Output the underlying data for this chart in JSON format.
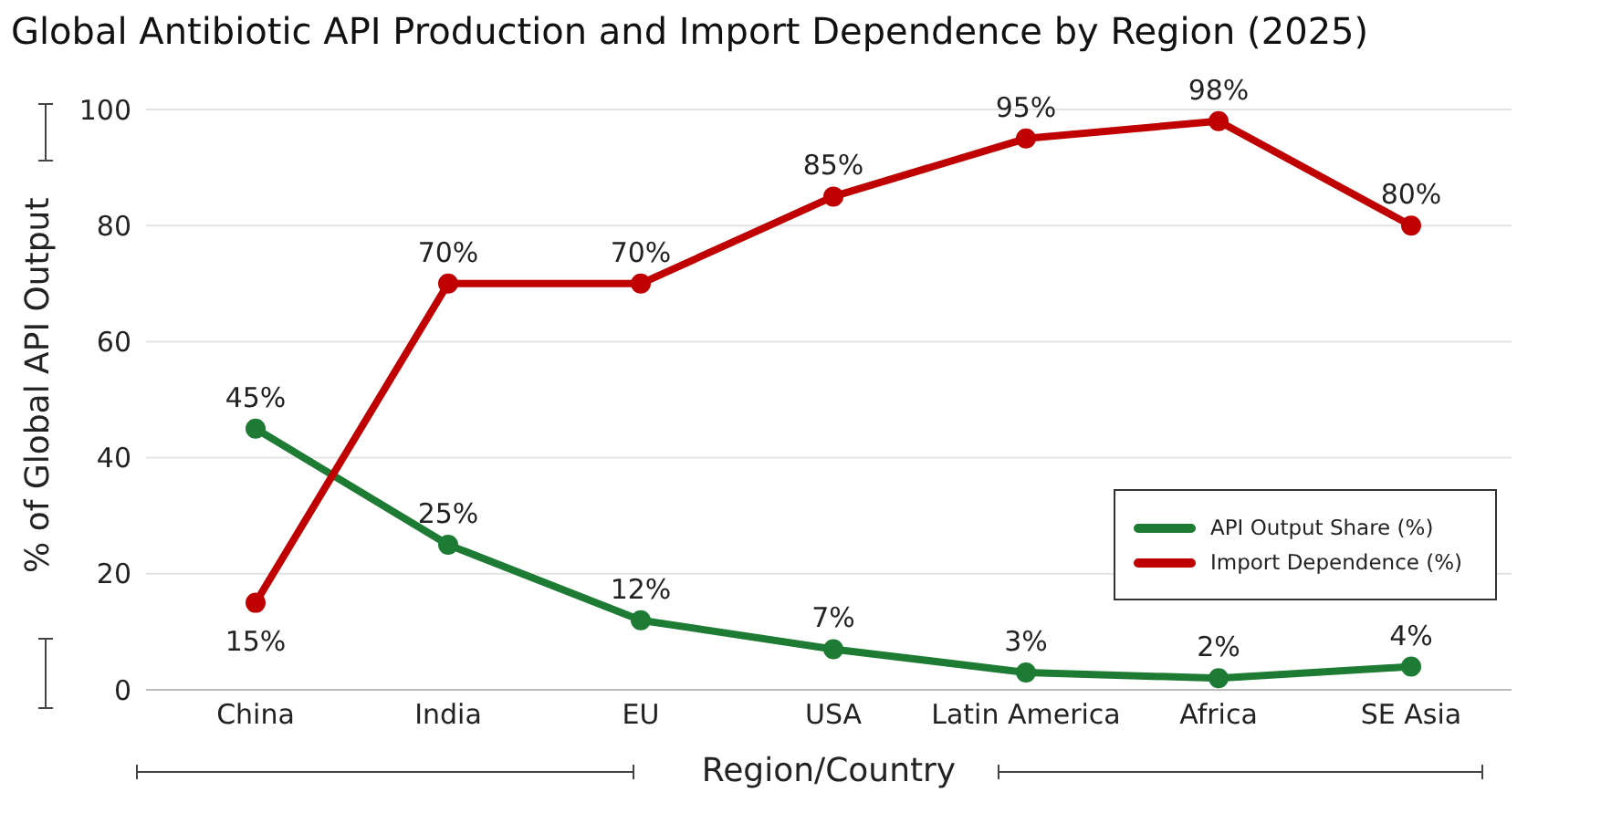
{
  "chart_data": {
    "type": "line",
    "title": "Global Antibiotic API Production and Import Dependence by Region (2025)",
    "xlabel": "Region/Country",
    "ylabel": "% of Global API Output",
    "categories": [
      "China",
      "India",
      "EU",
      "USA",
      "Latin America",
      "Africa",
      "SE Asia"
    ],
    "series": [
      {
        "name": "API Output Share (%)",
        "color": "#1e7b34",
        "values": [
          45,
          25,
          12,
          7,
          3,
          2,
          4
        ],
        "value_labels": [
          "45%",
          "25%",
          "12%",
          "7%",
          "3%",
          "2%",
          "4%"
        ]
      },
      {
        "name": "Import Dependence (%)",
        "color": "#c00000",
        "values": [
          15,
          70,
          70,
          85,
          95,
          98,
          80
        ],
        "value_labels": [
          "15%",
          "70%",
          "70%",
          "85%",
          "95%",
          "98%",
          "80%"
        ]
      }
    ],
    "ylim": [
      0,
      100
    ],
    "yticks": [
      0,
      20,
      40,
      60,
      80,
      100
    ],
    "grid": "y",
    "legend": "bottom right",
    "marker": "circle",
    "line_style": "solid"
  }
}
